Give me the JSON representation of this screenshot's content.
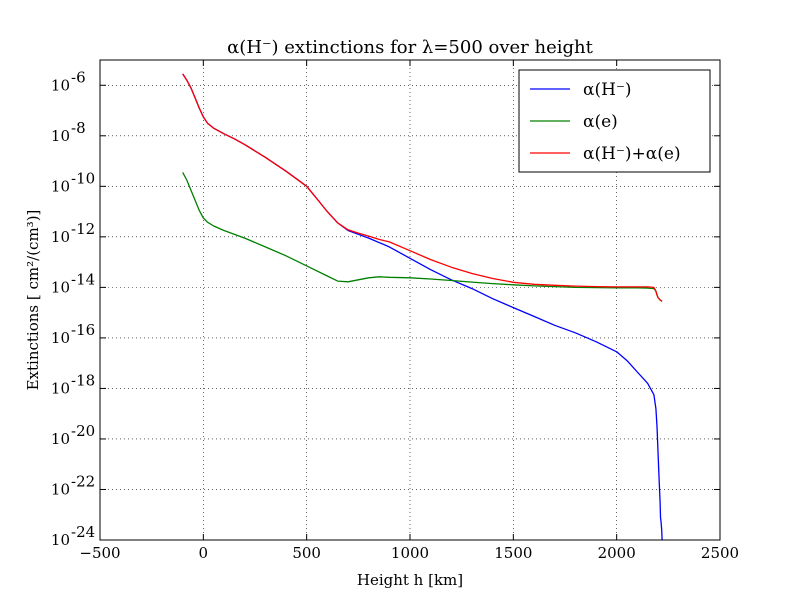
{
  "chart_data": {
    "type": "line",
    "title": "α(H⁻) extinctions for λ=500 over height",
    "xlabel": "Height h [km]",
    "ylabel": "Extinctions [ cm²/(cm³)]",
    "xlim": [
      -500,
      2500
    ],
    "ylim_log10": [
      -24,
      -5
    ],
    "yscale": "log",
    "grid": true,
    "legend_position": "top-right",
    "x_ticks": [
      -500,
      0,
      500,
      1000,
      1500,
      2000,
      2500
    ],
    "x_tick_labels": [
      "−500",
      "0",
      "500",
      "1000",
      "1500",
      "2000",
      "2500"
    ],
    "y_ticks_log10": [
      -24,
      -22,
      -20,
      -18,
      -16,
      -14,
      -12,
      -10,
      -8,
      -6
    ],
    "y_tick_bases": [
      "10",
      "10",
      "10",
      "10",
      "10",
      "10",
      "10",
      "10",
      "10",
      "10"
    ],
    "y_tick_exponents": [
      "-24",
      "-22",
      "-20",
      "-18",
      "-16",
      "-14",
      "-12",
      "-10",
      "-8",
      "-6"
    ],
    "series": [
      {
        "name": "α(H⁻)",
        "color": "#0000ff",
        "x": [
          -100,
          -80,
          -60,
          -40,
          -20,
          0,
          20,
          50,
          100,
          150,
          200,
          300,
          400,
          500,
          550,
          600,
          650,
          700,
          750,
          800,
          900,
          1000,
          1100,
          1200,
          1300,
          1400,
          1500,
          1600,
          1700,
          1800,
          1900,
          2000,
          2050,
          2100,
          2150,
          2180,
          2190,
          2195,
          2200,
          2205,
          2210,
          2212,
          2215,
          2218,
          2220
        ],
        "y_log10": [
          -5.55,
          -5.8,
          -6.1,
          -6.5,
          -6.9,
          -7.25,
          -7.5,
          -7.7,
          -7.92,
          -8.12,
          -8.35,
          -8.85,
          -9.4,
          -10.0,
          -10.5,
          -11.0,
          -11.45,
          -11.75,
          -11.9,
          -12.05,
          -12.4,
          -12.85,
          -13.3,
          -13.7,
          -14.05,
          -14.45,
          -14.8,
          -15.15,
          -15.5,
          -15.8,
          -16.15,
          -16.55,
          -16.9,
          -17.35,
          -17.8,
          -18.25,
          -18.8,
          -19.5,
          -20.5,
          -21.5,
          -22.5,
          -23.1,
          -23.3,
          -23.6,
          -24.0
        ]
      },
      {
        "name": "α(e)",
        "color": "#008000",
        "x": [
          -100,
          -80,
          -60,
          -40,
          -20,
          0,
          20,
          50,
          100,
          200,
          300,
          400,
          500,
          600,
          650,
          700,
          750,
          800,
          850,
          900,
          1000,
          1100,
          1200,
          1300,
          1400,
          1500,
          1600,
          1700,
          1800,
          1900,
          2000,
          2100,
          2150,
          2180,
          2190,
          2195,
          2200,
          2210,
          2220
        ],
        "y_log10": [
          -9.45,
          -9.75,
          -10.15,
          -10.55,
          -10.95,
          -11.25,
          -11.42,
          -11.57,
          -11.75,
          -12.05,
          -12.4,
          -12.75,
          -13.15,
          -13.55,
          -13.75,
          -13.78,
          -13.7,
          -13.62,
          -13.58,
          -13.6,
          -13.62,
          -13.67,
          -13.73,
          -13.79,
          -13.85,
          -13.9,
          -13.94,
          -13.97,
          -14.0,
          -14.01,
          -14.02,
          -14.02,
          -14.03,
          -14.05,
          -14.15,
          -14.3,
          -14.4,
          -14.5,
          -14.55
        ]
      },
      {
        "name": "α(H⁻)+α(e)",
        "color": "#ff0000",
        "x": [
          -100,
          -80,
          -60,
          -40,
          -20,
          0,
          20,
          50,
          100,
          150,
          200,
          300,
          400,
          500,
          550,
          600,
          650,
          700,
          750,
          800,
          850,
          900,
          1000,
          1100,
          1200,
          1300,
          1400,
          1500,
          1600,
          1700,
          1800,
          1900,
          2000,
          2100,
          2150,
          2180,
          2190,
          2195,
          2200,
          2210,
          2220
        ],
        "y_log10": [
          -5.55,
          -5.8,
          -6.1,
          -6.5,
          -6.9,
          -7.25,
          -7.5,
          -7.7,
          -7.92,
          -8.12,
          -8.35,
          -8.85,
          -9.4,
          -10.0,
          -10.5,
          -11.0,
          -11.45,
          -11.72,
          -11.85,
          -11.97,
          -12.1,
          -12.2,
          -12.55,
          -12.9,
          -13.2,
          -13.45,
          -13.65,
          -13.8,
          -13.88,
          -13.92,
          -13.95,
          -13.97,
          -13.98,
          -13.98,
          -13.98,
          -14.0,
          -14.15,
          -14.3,
          -14.4,
          -14.5,
          -14.55
        ]
      }
    ]
  }
}
